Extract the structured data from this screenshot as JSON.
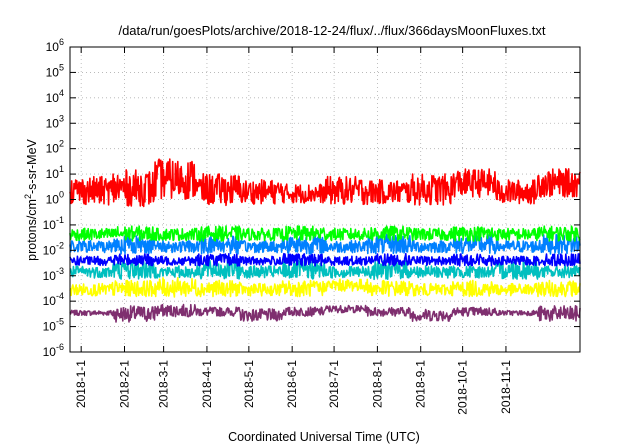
{
  "chart_data": {
    "type": "line",
    "title": "/data/run/goesPlots/archive/2018-12-24/flux/../flux/366daysMoonFluxes.txt",
    "xlabel": "Coordinated Universal Time (UTC)",
    "ylabel": "protons/cm²-s-sr-MeV",
    "ylabel_parts": {
      "before": "protons/cm",
      "sup": "2",
      "after": "-s-sr-MeV"
    },
    "y_scale": "log",
    "ylim": [
      1e-06,
      1000000.0
    ],
    "y_tick_exponents": [
      -6,
      -5,
      -4,
      -3,
      -2,
      -1,
      0,
      1,
      2,
      3,
      4,
      5,
      6
    ],
    "y_tick_base": "10",
    "xlim": [
      "2017-12-24",
      "2018-12-24"
    ],
    "x_ticks": [
      "2018-1-1",
      "2018-2-1",
      "2018-3-1",
      "2018-4-1",
      "2018-5-1",
      "2018-6-1",
      "2018-7-1",
      "2018-8-1",
      "2018-9-1",
      "2018-10-1",
      "2018-11-1"
    ],
    "grid": true,
    "legend": "none",
    "series": [
      {
        "color": "#7f2f6f",
        "values": [
          [
            3e-05,
            4e-05
          ],
          [
            2e-05,
            5e-05
          ],
          [
            3e-05,
            6e-05
          ],
          [
            3e-05,
            5e-05
          ],
          [
            2e-05,
            4e-05
          ],
          [
            3e-05,
            5e-05
          ],
          [
            4e-05,
            6e-05
          ],
          [
            3e-05,
            5e-05
          ],
          [
            2e-05,
            4e-05
          ],
          [
            3e-05,
            5e-05
          ],
          [
            3e-05,
            4e-05
          ],
          [
            2e-05,
            5e-05
          ]
        ]
      },
      {
        "color": "#ffff00",
        "values": [
          [
            0.0002,
            0.0004
          ],
          [
            0.0002,
            0.0005
          ],
          [
            0.0002,
            0.0006
          ],
          [
            0.0002,
            0.0005
          ],
          [
            0.0002,
            0.0004
          ],
          [
            0.0002,
            0.0005
          ],
          [
            0.0003,
            0.0006
          ],
          [
            0.0002,
            0.0005
          ],
          [
            0.0002,
            0.0004
          ],
          [
            0.0002,
            0.0005
          ],
          [
            0.0002,
            0.0004
          ],
          [
            0.0002,
            0.0005
          ]
        ]
      },
      {
        "color": "#00bfbf",
        "values": [
          [
            0.001,
            0.002
          ],
          [
            0.001,
            0.003
          ],
          [
            0.001,
            0.002
          ],
          [
            0.001,
            0.003
          ],
          [
            0.001,
            0.002
          ],
          [
            0.001,
            0.003
          ],
          [
            0.001,
            0.002
          ],
          [
            0.001,
            0.003
          ],
          [
            0.001,
            0.002
          ],
          [
            0.001,
            0.002
          ],
          [
            0.001,
            0.003
          ],
          [
            0.001,
            0.002
          ]
        ]
      },
      {
        "color": "#0000ff",
        "values": [
          [
            0.003,
            0.005
          ],
          [
            0.003,
            0.006
          ],
          [
            0.003,
            0.005
          ],
          [
            0.003,
            0.006
          ],
          [
            0.003,
            0.005
          ],
          [
            0.003,
            0.006
          ],
          [
            0.003,
            0.005
          ],
          [
            0.003,
            0.006
          ],
          [
            0.003,
            0.005
          ],
          [
            0.003,
            0.006
          ],
          [
            0.003,
            0.005
          ],
          [
            0.003,
            0.006
          ]
        ]
      },
      {
        "color": "#0080ff",
        "values": [
          [
            0.01,
            0.02
          ],
          [
            0.01,
            0.03
          ],
          [
            0.01,
            0.02
          ],
          [
            0.01,
            0.03
          ],
          [
            0.01,
            0.02
          ],
          [
            0.01,
            0.03
          ],
          [
            0.01,
            0.02
          ],
          [
            0.01,
            0.03
          ],
          [
            0.01,
            0.02
          ],
          [
            0.01,
            0.03
          ],
          [
            0.01,
            0.02
          ],
          [
            0.01,
            0.03
          ]
        ]
      },
      {
        "color": "#00ff00",
        "values": [
          [
            0.03,
            0.06
          ],
          [
            0.03,
            0.07
          ],
          [
            0.03,
            0.06
          ],
          [
            0.03,
            0.07
          ],
          [
            0.03,
            0.06
          ],
          [
            0.03,
            0.07
          ],
          [
            0.03,
            0.06
          ],
          [
            0.03,
            0.07
          ],
          [
            0.03,
            0.06
          ],
          [
            0.03,
            0.07
          ],
          [
            0.03,
            0.06
          ],
          [
            0.03,
            0.07
          ]
        ]
      },
      {
        "color": "#ff0000",
        "values": [
          [
            1,
            5
          ],
          [
            1,
            8
          ],
          [
            2,
            20
          ],
          [
            1,
            6
          ],
          [
            1,
            4
          ],
          [
            1,
            3
          ],
          [
            1,
            5
          ],
          [
            1,
            4
          ],
          [
            1,
            6
          ],
          [
            2,
            10
          ],
          [
            1,
            4
          ],
          [
            2,
            10
          ]
        ]
      }
    ]
  }
}
